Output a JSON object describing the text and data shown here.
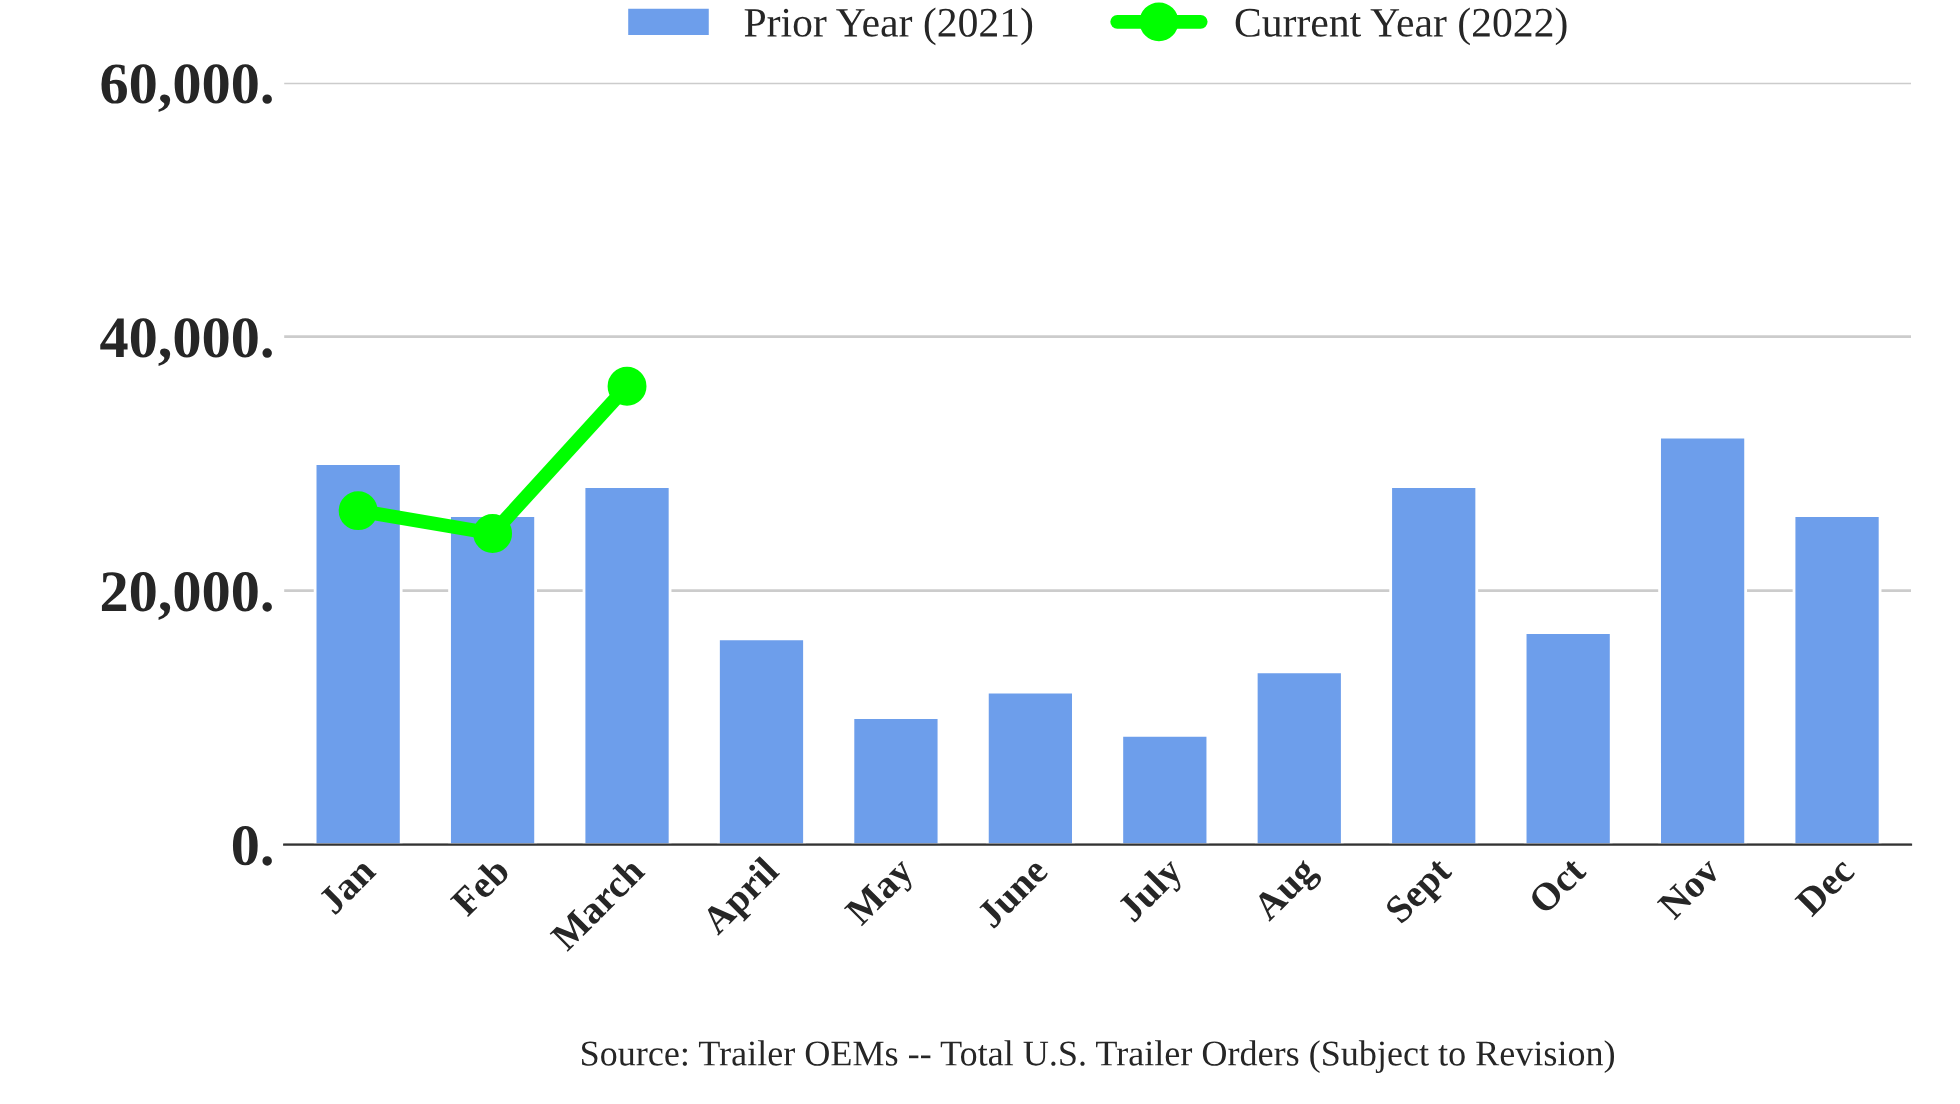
{
  "chart_data": {
    "type": "bar",
    "categories": [
      "Jan",
      "Feb",
      "March",
      "April",
      "May",
      "June",
      "July",
      "Aug",
      "Sept",
      "Oct",
      "Nov",
      "Dec"
    ],
    "series": [
      {
        "name": "Prior Year (2021)",
        "color": "#6d9eeb",
        "values": [
          30000,
          25900,
          28200,
          16200,
          10000,
          12000,
          8600,
          13600,
          28200,
          16700,
          32100,
          25900
        ]
      },
      {
        "name": "Current Year (2022)",
        "type": "line",
        "color": "#00ff00",
        "marker": "circle",
        "values": [
          26300,
          24500,
          36100,
          null,
          null,
          null,
          null,
          null,
          null,
          null,
          null,
          null
        ]
      }
    ],
    "ylim": [
      0,
      60000
    ],
    "yticks": [
      {
        "value": 0,
        "label": "0."
      },
      {
        "value": 20000,
        "label": "20,000."
      },
      {
        "value": 40000,
        "label": "40,000."
      },
      {
        "value": 60000,
        "label": "60,000."
      }
    ],
    "grid": "y",
    "legend": "top",
    "annotations": [
      "Source: Trailer OEMs -- Total U.S. Trailer Orders (Subject to Revision)"
    ]
  }
}
